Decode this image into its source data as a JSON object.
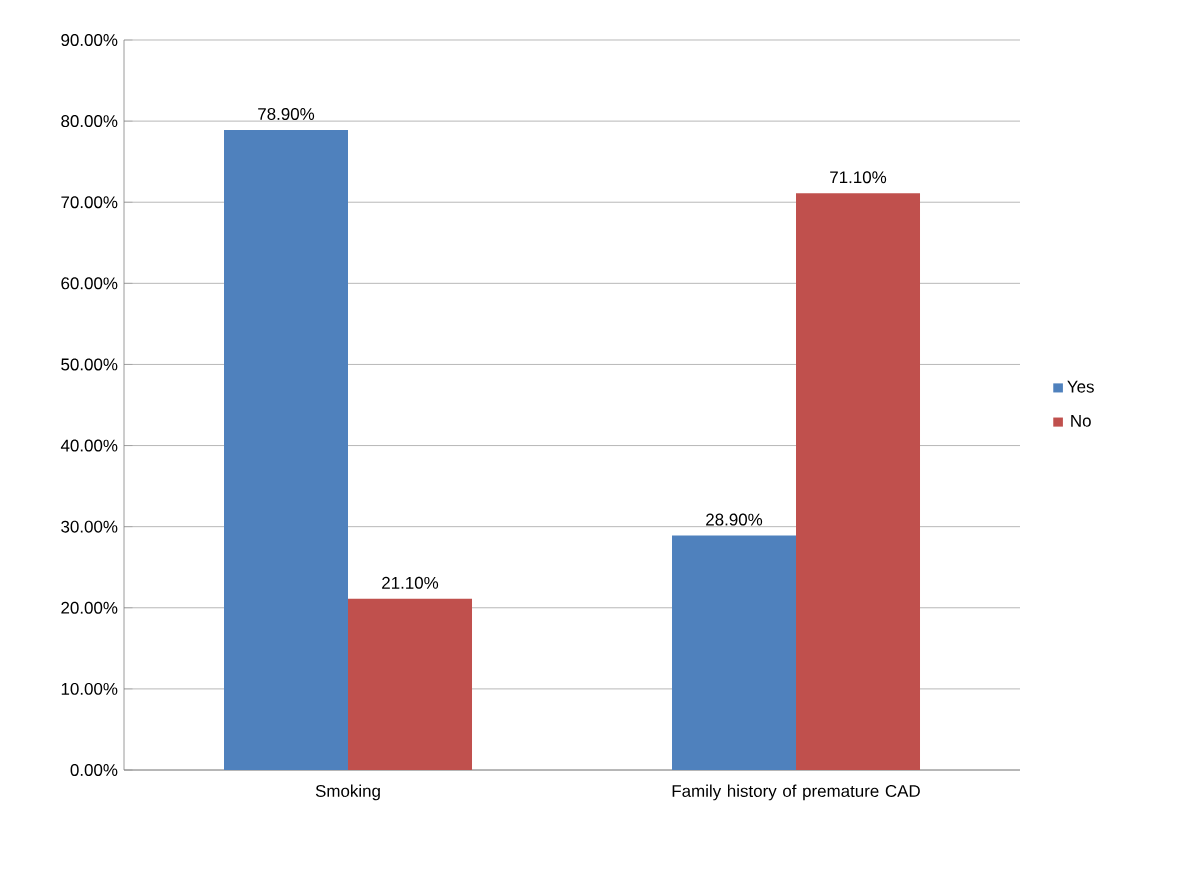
{
  "chart_data": {
    "type": "bar",
    "categories": [
      "Smoking",
      "Family history of premature CAD"
    ],
    "series": [
      {
        "name": "Yes",
        "color": "#4f81bd",
        "values": [
          78.9,
          28.9
        ],
        "value_labels": [
          "78.90%",
          "28.90%"
        ]
      },
      {
        "name": "No",
        "color": "#c0504d",
        "values": [
          21.1,
          71.1
        ],
        "value_labels": [
          "21.10%",
          "71.10%"
        ]
      }
    ],
    "ylim": [
      0,
      90
    ],
    "yticks": [
      {
        "value": 0,
        "label": "0.00%"
      },
      {
        "value": 10,
        "label": "10.00%"
      },
      {
        "value": 20,
        "label": "20.00%"
      },
      {
        "value": 30,
        "label": "30.00%"
      },
      {
        "value": 40,
        "label": "40.00%"
      },
      {
        "value": 50,
        "label": "50.00%"
      },
      {
        "value": 60,
        "label": "60.00%"
      },
      {
        "value": 70,
        "label": "70.00%"
      },
      {
        "value": 80,
        "label": "80.00%"
      },
      {
        "value": 90,
        "label": "90.00%"
      }
    ],
    "grid": "y",
    "legend": "right"
  }
}
